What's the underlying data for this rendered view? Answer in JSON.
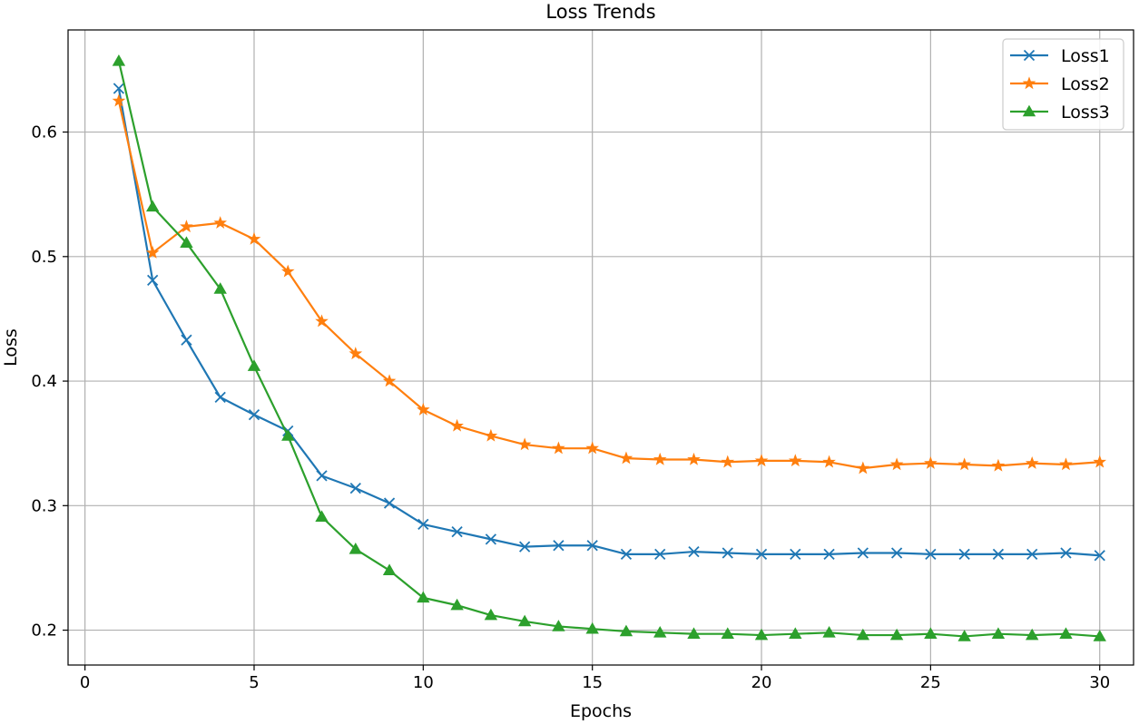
{
  "chart_data": {
    "type": "line",
    "title": "Loss Trends",
    "xlabel": "Epochs",
    "ylabel": "Loss",
    "xlim": [
      -0.5,
      31.0
    ],
    "ylim": [
      0.172,
      0.682
    ],
    "xticks": [
      0,
      5,
      10,
      15,
      20,
      25,
      30
    ],
    "yticks": [
      0.2,
      0.3,
      0.4,
      0.5,
      0.6
    ],
    "grid": true,
    "legend_position": "top-right",
    "x": [
      1,
      2,
      3,
      4,
      5,
      6,
      7,
      8,
      9,
      10,
      11,
      12,
      13,
      14,
      15,
      16,
      17,
      18,
      19,
      20,
      21,
      22,
      23,
      24,
      25,
      26,
      27,
      28,
      29,
      30
    ],
    "series": [
      {
        "name": "Loss1",
        "color": "#1f77b4",
        "marker": "x",
        "values": [
          0.635,
          0.481,
          0.433,
          0.387,
          0.373,
          0.36,
          0.324,
          0.314,
          0.302,
          0.285,
          0.279,
          0.273,
          0.267,
          0.268,
          0.268,
          0.261,
          0.261,
          0.263,
          0.262,
          0.261,
          0.261,
          0.261,
          0.262,
          0.262,
          0.261,
          0.261,
          0.261,
          0.261,
          0.262,
          0.26
        ]
      },
      {
        "name": "Loss2",
        "color": "#ff7f0e",
        "marker": "star",
        "values": [
          0.625,
          0.503,
          0.524,
          0.527,
          0.514,
          0.488,
          0.448,
          0.422,
          0.4,
          0.377,
          0.364,
          0.356,
          0.349,
          0.346,
          0.346,
          0.338,
          0.337,
          0.337,
          0.335,
          0.336,
          0.336,
          0.335,
          0.33,
          0.333,
          0.334,
          0.333,
          0.332,
          0.334,
          0.333,
          0.335
        ]
      },
      {
        "name": "Loss3",
        "color": "#2ca02c",
        "marker": "triangle",
        "values": [
          0.657,
          0.54,
          0.511,
          0.474,
          0.412,
          0.356,
          0.291,
          0.265,
          0.248,
          0.226,
          0.22,
          0.212,
          0.207,
          0.203,
          0.201,
          0.199,
          0.198,
          0.197,
          0.197,
          0.196,
          0.197,
          0.198,
          0.196,
          0.196,
          0.197,
          0.195,
          0.197,
          0.196,
          0.197,
          0.195
        ]
      }
    ]
  }
}
